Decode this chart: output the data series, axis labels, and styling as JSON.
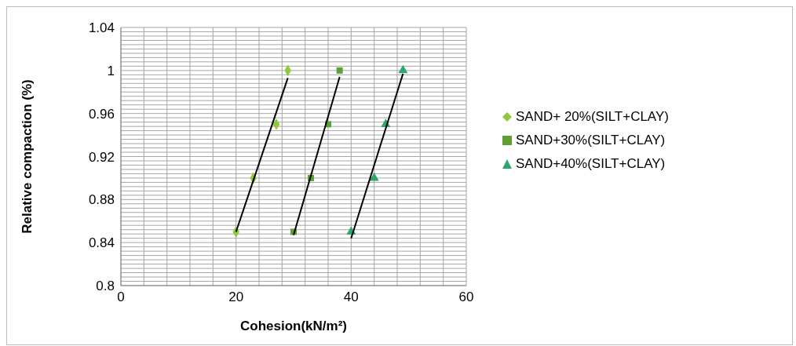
{
  "chart_data": {
    "type": "scatter",
    "xlabel": "Cohesion(kN/m²)",
    "ylabel": "Relative compaction (%)",
    "xlim": [
      0,
      60
    ],
    "ylim": [
      0.8,
      1.04
    ],
    "xticks": [
      0,
      {
        "value": 4,
        "label": null
      },
      {
        "value": 8,
        "label": null
      },
      {
        "value": 12,
        "label": null
      },
      {
        "value": 16,
        "label": null
      },
      20,
      {
        "value": 24,
        "label": null
      },
      {
        "value": 28,
        "label": null
      },
      {
        "value": 32,
        "label": null
      },
      {
        "value": 36,
        "label": null
      },
      40,
      {
        "value": 44,
        "label": null
      },
      {
        "value": 48,
        "label": null
      },
      {
        "value": 52,
        "label": null
      },
      {
        "value": 56,
        "label": null
      },
      60
    ],
    "yticks": [
      0.8,
      {
        "value": 0.804,
        "label": null
      },
      {
        "value": 0.808,
        "label": null
      },
      {
        "value": 0.812,
        "label": null
      },
      {
        "value": 0.816,
        "label": null
      },
      {
        "value": 0.82,
        "label": null
      },
      {
        "value": 0.824,
        "label": null
      },
      {
        "value": 0.828,
        "label": null
      },
      {
        "value": 0.832,
        "label": null
      },
      {
        "value": 0.836,
        "label": null
      },
      0.84,
      {
        "value": 0.844,
        "label": null
      },
      {
        "value": 0.848,
        "label": null
      },
      {
        "value": 0.852,
        "label": null
      },
      {
        "value": 0.856,
        "label": null
      },
      {
        "value": 0.86,
        "label": null
      },
      {
        "value": 0.864,
        "label": null
      },
      {
        "value": 0.868,
        "label": null
      },
      {
        "value": 0.872,
        "label": null
      },
      {
        "value": 0.876,
        "label": null
      },
      0.88,
      {
        "value": 0.884,
        "label": null
      },
      {
        "value": 0.888,
        "label": null
      },
      {
        "value": 0.892,
        "label": null
      },
      {
        "value": 0.896,
        "label": null
      },
      {
        "value": 0.9,
        "label": null
      },
      {
        "value": 0.904,
        "label": null
      },
      {
        "value": 0.908,
        "label": null
      },
      {
        "value": 0.912,
        "label": null
      },
      {
        "value": 0.916,
        "label": null
      },
      0.92,
      {
        "value": 0.924,
        "label": null
      },
      {
        "value": 0.928,
        "label": null
      },
      {
        "value": 0.932,
        "label": null
      },
      {
        "value": 0.936,
        "label": null
      },
      {
        "value": 0.94,
        "label": null
      },
      {
        "value": 0.944,
        "label": null
      },
      {
        "value": 0.948,
        "label": null
      },
      {
        "value": 0.952,
        "label": null
      },
      {
        "value": 0.956,
        "label": null
      },
      0.96,
      {
        "value": 0.964,
        "label": null
      },
      {
        "value": 0.968,
        "label": null
      },
      {
        "value": 0.972,
        "label": null
      },
      {
        "value": 0.976,
        "label": null
      },
      {
        "value": 0.98,
        "label": null
      },
      {
        "value": 0.984,
        "label": null
      },
      {
        "value": 0.988,
        "label": null
      },
      {
        "value": 0.992,
        "label": null
      },
      {
        "value": 0.996,
        "label": null
      },
      1,
      {
        "value": 1.004,
        "label": null
      },
      {
        "value": 1.008,
        "label": null
      },
      {
        "value": 1.012,
        "label": null
      },
      {
        "value": 1.016,
        "label": null
      },
      {
        "value": 1.02,
        "label": null
      },
      {
        "value": 1.024,
        "label": null
      },
      {
        "value": 1.028,
        "label": null
      },
      {
        "value": 1.032,
        "label": null
      },
      {
        "value": 1.036,
        "label": null
      },
      1.04
    ],
    "grid": true,
    "legend": "right",
    "series": [
      {
        "name": "SAND+ 20%(SILT+CLAY)",
        "color": "#92c83e",
        "marker": "diamond",
        "x": [
          20,
          23,
          27,
          29
        ],
        "values": [
          0.85,
          0.9,
          0.95,
          1
        ]
      },
      {
        "name": "SAND+30%(SILT+CLAY)",
        "color": "#5fa033",
        "marker": "square",
        "x": [
          30,
          33,
          36,
          38
        ],
        "values": [
          0.85,
          0.9,
          0.95,
          1
        ]
      },
      {
        "name": "SAND+40%(SILT+CLAY)",
        "color": "#2ea66f",
        "marker": "triangle",
        "x": [
          40,
          44,
          46,
          49
        ],
        "values": [
          0.85,
          0.9,
          0.95,
          1
        ]
      },
      {
        "type": "line",
        "color": "#000000",
        "marker": "none",
        "x": [
          20,
          29
        ],
        "values": [
          0.85,
          0.993
        ]
      },
      {
        "type": "line",
        "color": "#000000",
        "marker": "none",
        "x": [
          30,
          38
        ],
        "values": [
          0.847,
          0.994
        ]
      },
      {
        "type": "line",
        "color": "#000000",
        "marker": "none",
        "x": [
          40,
          49
        ],
        "values": [
          0.844,
          0.997
        ]
      }
    ]
  }
}
